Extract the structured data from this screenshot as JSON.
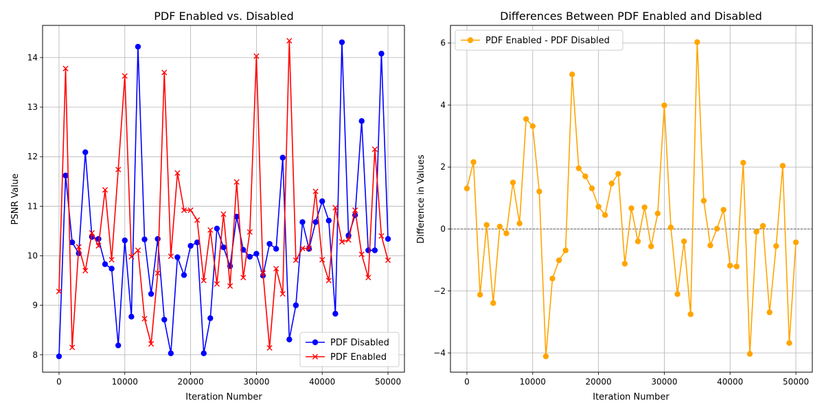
{
  "chart_data": [
    {
      "type": "line",
      "title": "PDF Enabled vs. Disabled",
      "xlabel": "Iteration Number",
      "ylabel": "PSNR Value",
      "xlim": [
        -2500,
        52500
      ],
      "ylim": [
        7.65,
        14.65
      ],
      "xticks": [
        0,
        10000,
        20000,
        30000,
        40000,
        50000
      ],
      "yticks": [
        8,
        9,
        10,
        11,
        12,
        13,
        14
      ],
      "grid": true,
      "legend_position": "lower-right",
      "x": [
        0,
        1000,
        2000,
        3000,
        4000,
        5000,
        6000,
        7000,
        8000,
        9000,
        10000,
        11000,
        12000,
        13000,
        14000,
        15000,
        16000,
        17000,
        18000,
        19000,
        20000,
        21000,
        22000,
        23000,
        24000,
        25000,
        26000,
        27000,
        28000,
        29000,
        30000,
        31000,
        32000,
        33000,
        34000,
        35000,
        36000,
        37000,
        38000,
        39000,
        40000,
        41000,
        42000,
        43000,
        44000,
        45000,
        46000,
        47000,
        48000,
        49000,
        50000
      ],
      "series": [
        {
          "name": "PDF Disabled",
          "color": "#0000ff",
          "marker": "circle",
          "values": [
            7.97,
            11.62,
            10.27,
            10.05,
            12.09,
            10.38,
            10.34,
            9.83,
            9.74,
            8.19,
            10.31,
            8.77,
            14.22,
            10.33,
            9.23,
            10.34,
            8.71,
            8.03,
            9.97,
            9.61,
            10.2,
            10.27,
            8.03,
            8.74,
            10.55,
            10.17,
            9.79,
            10.79,
            10.12,
            9.98,
            10.04,
            9.6,
            10.24,
            10.14,
            11.98,
            8.31,
            9.0,
            10.68,
            10.14,
            10.68,
            11.1,
            10.71,
            8.83,
            14.31,
            10.41,
            10.82,
            12.72,
            10.11,
            10.11,
            14.08,
            10.34
          ]
        },
        {
          "name": "PDF Enabled",
          "color": "#ff0000",
          "marker": "x",
          "values": [
            9.28,
            13.78,
            8.15,
            10.18,
            9.7,
            10.46,
            10.2,
            11.33,
            9.92,
            11.74,
            13.63,
            9.98,
            10.11,
            8.73,
            8.22,
            9.65,
            13.7,
            9.99,
            11.67,
            10.92,
            10.92,
            10.72,
            9.5,
            10.52,
            9.43,
            10.84,
            9.39,
            11.49,
            9.56,
            10.48,
            14.03,
            9.65,
            8.14,
            9.74,
            9.23,
            14.34,
            9.91,
            10.15,
            10.15,
            11.3,
            9.92,
            9.5,
            10.97,
            10.28,
            10.32,
            10.92,
            10.03,
            9.56,
            12.15,
            10.4,
            9.91
          ]
        }
      ]
    },
    {
      "type": "line",
      "title": "Differences Between PDF Enabled and Disabled",
      "xlabel": "Iteration Number",
      "ylabel": "Difference in Values",
      "xlim": [
        -2500,
        52500
      ],
      "ylim": [
        -4.62,
        6.57
      ],
      "xticks": [
        0,
        10000,
        20000,
        30000,
        40000,
        50000
      ],
      "yticks": [
        -4,
        -2,
        0,
        2,
        4,
        6
      ],
      "grid": true,
      "zero_line": true,
      "legend_position": "top-left",
      "x": [
        0,
        1000,
        2000,
        3000,
        4000,
        5000,
        6000,
        7000,
        8000,
        9000,
        10000,
        11000,
        12000,
        13000,
        14000,
        15000,
        16000,
        17000,
        18000,
        19000,
        20000,
        21000,
        22000,
        23000,
        24000,
        25000,
        26000,
        27000,
        28000,
        29000,
        30000,
        31000,
        32000,
        33000,
        34000,
        35000,
        36000,
        37000,
        38000,
        39000,
        40000,
        41000,
        42000,
        43000,
        44000,
        45000,
        46000,
        47000,
        48000,
        49000,
        50000
      ],
      "series": [
        {
          "name": "PDF Enabled - PDF Disabled",
          "color": "#ffa500",
          "marker": "circle",
          "values": [
            1.31,
            2.16,
            -2.12,
            0.13,
            -2.39,
            0.08,
            -0.14,
            1.5,
            0.18,
            3.55,
            3.32,
            1.21,
            -4.11,
            -1.6,
            -1.01,
            -0.69,
            4.99,
            1.96,
            1.7,
            1.31,
            0.72,
            0.45,
            1.47,
            1.78,
            -1.12,
            0.67,
            -0.4,
            0.7,
            -0.56,
            0.5,
            3.99,
            0.05,
            -2.1,
            -0.4,
            -2.75,
            6.03,
            0.91,
            -0.53,
            0.01,
            0.62,
            -1.18,
            -1.21,
            2.14,
            -4.03,
            -0.09,
            0.1,
            -2.69,
            -0.55,
            2.04,
            -3.68,
            -0.43
          ]
        }
      ]
    }
  ]
}
